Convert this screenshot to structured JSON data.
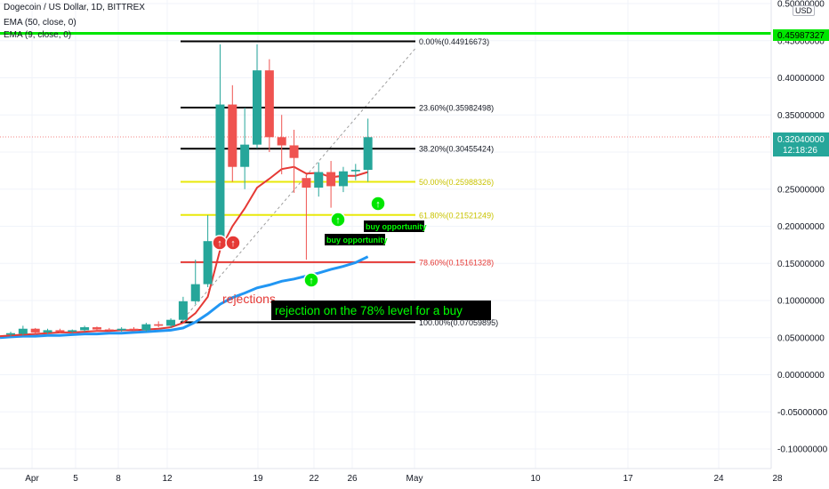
{
  "header": {
    "symbol_line": "Dogecoin / US Dollar, 1D, BITTREX",
    "ema50_label": "EMA (50, close, 0)",
    "ema9_label": "EMA (9, close, 0)",
    "currency": "USD"
  },
  "price_axis": {
    "ticks": [
      "0.50000000",
      "0.45000000",
      "0.40000000",
      "0.35000000",
      "0.30000000",
      "0.25000000",
      "0.20000000",
      "0.15000000",
      "0.10000000",
      "0.05000000",
      "0.00000000",
      "-0.05000000",
      "-0.10000000"
    ],
    "current_price": "0.32040000",
    "countdown": "12:18:26",
    "alert_line_price": "0.45987327",
    "current_color": "#26a69a",
    "alert_color": "#00e600"
  },
  "time_axis": {
    "labels": [
      "Apr",
      "5",
      "8",
      "12",
      "19",
      "22",
      "26",
      "May",
      "10",
      "17",
      "24",
      "28"
    ]
  },
  "chart_data": {
    "type": "candlestick",
    "instrument": "Dogecoin / US Dollar, 1D, BITTREX",
    "y_range": [
      -0.12,
      0.5
    ],
    "up_color": "#26a69a",
    "down_color": "#ef5350",
    "candles": [
      {
        "o": 0.054,
        "h": 0.058,
        "l": 0.052,
        "c": 0.056
      },
      {
        "o": 0.055,
        "h": 0.066,
        "l": 0.053,
        "c": 0.062
      },
      {
        "o": 0.062,
        "h": 0.063,
        "l": 0.055,
        "c": 0.057
      },
      {
        "o": 0.057,
        "h": 0.062,
        "l": 0.055,
        "c": 0.06
      },
      {
        "o": 0.06,
        "h": 0.062,
        "l": 0.056,
        "c": 0.058
      },
      {
        "o": 0.058,
        "h": 0.061,
        "l": 0.056,
        "c": 0.06
      },
      {
        "o": 0.06,
        "h": 0.066,
        "l": 0.058,
        "c": 0.064
      },
      {
        "o": 0.064,
        "h": 0.065,
        "l": 0.059,
        "c": 0.061
      },
      {
        "o": 0.061,
        "h": 0.063,
        "l": 0.058,
        "c": 0.06
      },
      {
        "o": 0.06,
        "h": 0.064,
        "l": 0.058,
        "c": 0.062
      },
      {
        "o": 0.062,
        "h": 0.064,
        "l": 0.059,
        "c": 0.06
      },
      {
        "o": 0.06,
        "h": 0.07,
        "l": 0.058,
        "c": 0.068
      },
      {
        "o": 0.068,
        "h": 0.072,
        "l": 0.064,
        "c": 0.066
      },
      {
        "o": 0.066,
        "h": 0.076,
        "l": 0.063,
        "c": 0.074
      },
      {
        "o": 0.074,
        "h": 0.105,
        "l": 0.072,
        "c": 0.099
      },
      {
        "o": 0.099,
        "h": 0.155,
        "l": 0.095,
        "c": 0.122
      },
      {
        "o": 0.122,
        "h": 0.215,
        "l": 0.118,
        "c": 0.18
      },
      {
        "o": 0.18,
        "h": 0.445,
        "l": 0.18,
        "c": 0.364
      },
      {
        "o": 0.364,
        "h": 0.39,
        "l": 0.26,
        "c": 0.28
      },
      {
        "o": 0.28,
        "h": 0.36,
        "l": 0.25,
        "c": 0.31
      },
      {
        "o": 0.31,
        "h": 0.445,
        "l": 0.305,
        "c": 0.41
      },
      {
        "o": 0.41,
        "h": 0.425,
        "l": 0.3,
        "c": 0.32
      },
      {
        "o": 0.32,
        "h": 0.35,
        "l": 0.27,
        "c": 0.309
      },
      {
        "o": 0.309,
        "h": 0.33,
        "l": 0.245,
        "c": 0.292
      },
      {
        "o": 0.265,
        "h": 0.27,
        "l": 0.155,
        "c": 0.252
      },
      {
        "o": 0.252,
        "h": 0.286,
        "l": 0.24,
        "c": 0.273
      },
      {
        "o": 0.273,
        "h": 0.288,
        "l": 0.225,
        "c": 0.254
      },
      {
        "o": 0.254,
        "h": 0.28,
        "l": 0.246,
        "c": 0.274
      },
      {
        "o": 0.274,
        "h": 0.284,
        "l": 0.262,
        "c": 0.276
      },
      {
        "o": 0.276,
        "h": 0.345,
        "l": 0.26,
        "c": 0.32
      }
    ],
    "ema50": [
      0.051,
      0.052,
      0.052,
      0.053,
      0.053,
      0.054,
      0.055,
      0.055,
      0.056,
      0.056,
      0.057,
      0.058,
      0.059,
      0.06,
      0.063,
      0.071,
      0.082,
      0.095,
      0.104,
      0.11,
      0.117,
      0.121,
      0.126,
      0.129,
      0.133,
      0.137,
      0.142,
      0.146,
      0.151,
      0.159
    ],
    "ema9": [
      0.053,
      0.054,
      0.055,
      0.056,
      0.057,
      0.057,
      0.058,
      0.059,
      0.059,
      0.06,
      0.06,
      0.061,
      0.062,
      0.064,
      0.07,
      0.083,
      0.105,
      0.168,
      0.2,
      0.224,
      0.252,
      0.264,
      0.277,
      0.28,
      0.271,
      0.272,
      0.266,
      0.268,
      0.268,
      0.273
    ],
    "fib_levels": [
      {
        "label": "0.00%(0.44916673)",
        "price": 0.44916673,
        "color": "#000000"
      },
      {
        "label": "23.60%(0.35982498)",
        "price": 0.35982498,
        "color": "#000000"
      },
      {
        "label": "38.20%(0.30455424)",
        "price": 0.30455424,
        "color": "#000000"
      },
      {
        "label": "50.00%(0.25988326)",
        "price": 0.25988326,
        "color": "#e8e80a"
      },
      {
        "label": "61.80%(0.21521249)",
        "price": 0.21521249,
        "color": "#e8e80a"
      },
      {
        "label": "78.60%(0.15161328)",
        "price": 0.15161328,
        "color": "#e53935"
      },
      {
        "label": "100.00%(0.07059895)",
        "price": 0.07059895,
        "color": "#000000"
      }
    ],
    "annotations": {
      "rejections": "rejections",
      "buy_opportunity_1": "buy opportunity",
      "buy_opportunity_2": "buy opportunity",
      "rejection_78": "rejection on the 78% level for a buy"
    }
  }
}
